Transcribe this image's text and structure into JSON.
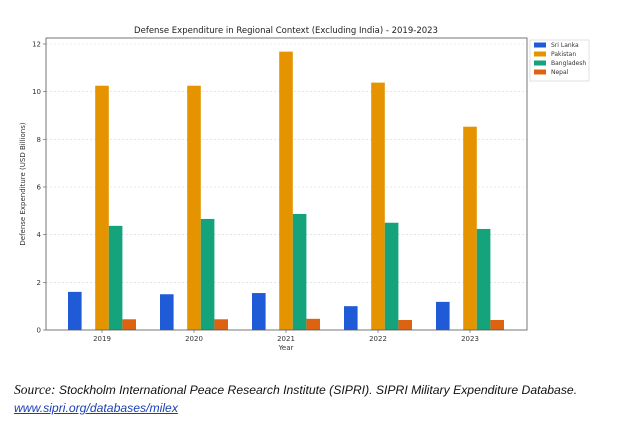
{
  "chart_data": {
    "type": "bar",
    "title": "Defense Expenditure in Regional Context (Excluding India) - 2019-2023",
    "xlabel": "Year",
    "ylabel": "Defense Expenditure (USD Billions)",
    "categories": [
      "2019",
      "2020",
      "2021",
      "2022",
      "2023"
    ],
    "ylim": [
      0,
      12.4
    ],
    "yticks": [
      0,
      2,
      4,
      6,
      8,
      10,
      12
    ],
    "grid": true,
    "legend_position": "outside-top-right",
    "series": [
      {
        "name": "Sri Lanka",
        "color": "#1f5bd6",
        "slot": -2,
        "values": [
          1.6,
          1.5,
          1.55,
          1.0,
          1.18
        ]
      },
      {
        "name": "Pakistan",
        "color": "#e59400",
        "slot": 0,
        "values": [
          10.25,
          10.25,
          11.68,
          10.38,
          8.53
        ]
      },
      {
        "name": "Bangladesh",
        "color": "#14a37a",
        "slot": 1,
        "values": [
          4.37,
          4.66,
          4.87,
          4.5,
          4.24
        ]
      },
      {
        "name": "Nepal",
        "color": "#dd6310",
        "slot": 2,
        "values": [
          0.45,
          0.45,
          0.47,
          0.42,
          0.42
        ]
      }
    ]
  },
  "source": {
    "label": "Source:",
    "text": " Stockholm International Peace Research Institute (SIPRI). SIPRI Military Expenditure Database.",
    "link_text": "www.sipri.org/databases/milex"
  }
}
